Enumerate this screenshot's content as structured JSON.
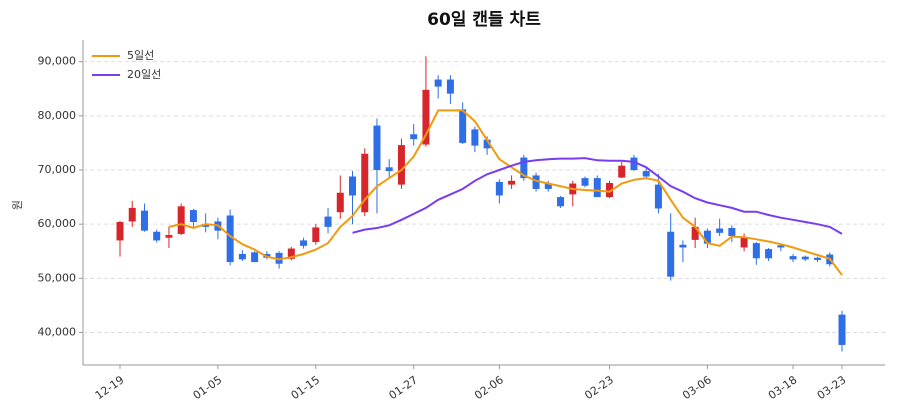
{
  "chart_data": {
    "type": "candlestick",
    "title": "60일 캔들 차트",
    "y_label": "원",
    "categories": [
      "12-19",
      null,
      null,
      null,
      null,
      null,
      null,
      null,
      "01-05",
      null,
      null,
      null,
      null,
      null,
      null,
      null,
      "01-15",
      null,
      null,
      null,
      null,
      null,
      null,
      null,
      "01-27",
      null,
      null,
      null,
      null,
      null,
      null,
      "02-06",
      null,
      null,
      null,
      null,
      null,
      null,
      null,
      null,
      "02-23",
      null,
      null,
      null,
      null,
      null,
      null,
      null,
      "03-06",
      null,
      null,
      null,
      null,
      null,
      null,
      "03-18",
      null,
      null,
      null,
      "03-23"
    ],
    "open": [
      57000,
      60500,
      62500,
      58600,
      57500,
      58200,
      62600,
      60000,
      60500,
      61600,
      54500,
      54800,
      54500,
      54700,
      53600,
      57000,
      56700,
      61400,
      62200,
      68800,
      62200,
      78200,
      70500,
      67300,
      76600,
      74700,
      86700,
      86700,
      81200,
      77500,
      75600,
      67800,
      67300,
      72300,
      69000,
      67500,
      65000,
      65500,
      68500,
      68500,
      65000,
      68600,
      72300,
      69800,
      67300,
      58600,
      56200,
      57100,
      58800,
      59200,
      59300,
      55700,
      56500,
      55400,
      56100,
      54100,
      54000,
      53800,
      54400,
      43300
    ],
    "high": [
      60600,
      64300,
      63800,
      59000,
      59500,
      63800,
      62800,
      62000,
      61200,
      62700,
      55200,
      55000,
      55000,
      55000,
      55800,
      57500,
      60000,
      63000,
      69000,
      69800,
      74000,
      79500,
      72000,
      75800,
      78500,
      91000,
      87500,
      87500,
      82500,
      78000,
      76200,
      68300,
      69000,
      72800,
      69500,
      68000,
      65200,
      68000,
      68800,
      69000,
      68000,
      71500,
      72800,
      70500,
      69300,
      62000,
      57000,
      61200,
      59200,
      61000,
      59800,
      58300,
      56700,
      55600,
      56300,
      54500,
      54200,
      54000,
      54800,
      44000
    ],
    "low": [
      54000,
      59500,
      58600,
      56600,
      55600,
      58000,
      59500,
      58500,
      57200,
      52400,
      53200,
      53000,
      53500,
      51800,
      53300,
      55500,
      56200,
      58300,
      61000,
      60000,
      61500,
      62000,
      68500,
      66500,
      74500,
      74300,
      83200,
      82200,
      74800,
      73300,
      72800,
      63800,
      66500,
      68000,
      66000,
      66000,
      63000,
      63300,
      66800,
      65000,
      64800,
      68500,
      69800,
      68500,
      62000,
      49600,
      53000,
      55600,
      55600,
      57800,
      56700,
      55000,
      52500,
      53200,
      55000,
      53000,
      53200,
      53000,
      52200,
      36500
    ],
    "close": [
      60400,
      63000,
      58800,
      57000,
      58000,
      63300,
      60400,
      59500,
      58800,
      53000,
      53500,
      53000,
      53800,
      52700,
      55500,
      56000,
      59400,
      59500,
      65800,
      65300,
      73000,
      70000,
      69800,
      74600,
      75700,
      84800,
      85400,
      84100,
      75000,
      74500,
      74000,
      65300,
      68000,
      68500,
      66500,
      66500,
      63300,
      67500,
      67100,
      65000,
      67600,
      70800,
      70000,
      68800,
      62900,
      50300,
      55700,
      59500,
      56400,
      58400,
      57800,
      57600,
      53700,
      53700,
      55700,
      53500,
      53500,
      53400,
      52600,
      37700
    ],
    "up_color": "#d7262b",
    "down_color": "#2e6ee6",
    "series": [
      {
        "name": "5일선",
        "color": "#f29a0f",
        "values": [
          null,
          null,
          null,
          null,
          59500,
          60000,
          59300,
          60000,
          59800,
          57800,
          56300,
          55300,
          54000,
          53500,
          53900,
          54500,
          55300,
          56500,
          59500,
          61500,
          64500,
          67000,
          68500,
          70000,
          72500,
          76500,
          81000,
          81000,
          81000,
          79000,
          75500,
          72000,
          70500,
          69000,
          68000,
          67500,
          67000,
          66500,
          66300,
          66200,
          66000,
          67500,
          68200,
          68500,
          68000,
          64500,
          61200,
          59500,
          56500,
          56000,
          57700,
          57600,
          57200,
          56800,
          56300,
          55700,
          55000,
          54300,
          53600,
          50600
        ]
      },
      {
        "name": "20일선",
        "color": "#7a3cf0",
        "values": [
          null,
          null,
          null,
          null,
          null,
          null,
          null,
          null,
          null,
          null,
          null,
          null,
          null,
          null,
          null,
          null,
          null,
          null,
          null,
          58400,
          59000,
          59300,
          59800,
          60800,
          61900,
          63000,
          64500,
          65500,
          66500,
          68000,
          69200,
          70000,
          70800,
          71500,
          71800,
          72000,
          72100,
          72100,
          72200,
          71800,
          71700,
          71700,
          71500,
          70500,
          68800,
          67000,
          66000,
          64800,
          64000,
          63500,
          63000,
          62300,
          62300,
          61700,
          61200,
          60800,
          60400,
          60000,
          59500,
          58200
        ]
      }
    ],
    "ylim": [
      34000,
      94000
    ],
    "yticks": [
      {
        "value": 40000,
        "label": "40,000"
      },
      {
        "value": 50000,
        "label": "50,000"
      },
      {
        "value": 60000,
        "label": "60,000"
      },
      {
        "value": 70000,
        "label": "70,000"
      },
      {
        "value": 80000,
        "label": "80,000"
      },
      {
        "value": 90000,
        "label": "90,000"
      }
    ],
    "grid": true,
    "legend": "upper-left"
  }
}
